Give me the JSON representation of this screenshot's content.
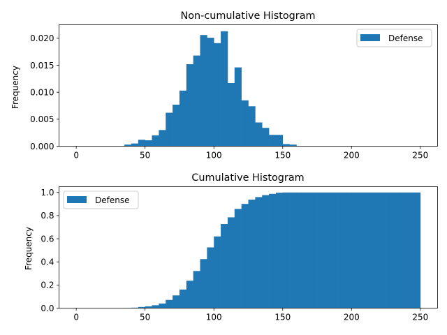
{
  "colors": {
    "bar": "#1f77b4",
    "axis": "#000000",
    "background": "#ffffff"
  },
  "chart_data": [
    {
      "type": "bar",
      "subtype": "histogram",
      "title": "Non-cumulative Histogram",
      "xlabel": "",
      "ylabel": "Frequency",
      "xlim": [
        -12.5,
        262.5
      ],
      "ylim": [
        0,
        0.0225
      ],
      "xticks": [
        "0",
        "50",
        "100",
        "150",
        "200",
        "250"
      ],
      "yticks": [
        "0.000",
        "0.005",
        "0.010",
        "0.015",
        "0.020"
      ],
      "ytick_values": [
        0,
        0.005,
        0.01,
        0.015,
        0.02
      ],
      "grid": false,
      "legend_position": "upper right",
      "bin_width": 5,
      "bin_start": 0,
      "series": [
        {
          "name": "Defense",
          "values": [
            0,
            0,
            0,
            0,
            0,
            0,
            0,
            0.0003,
            0.0005,
            0.0012,
            0.0011,
            0.002,
            0.003,
            0.0062,
            0.0077,
            0.0103,
            0.0152,
            0.0168,
            0.0206,
            0.0201,
            0.0191,
            0.0213,
            0.0117,
            0.0146,
            0.0085,
            0.0074,
            0.0044,
            0.0034,
            0.0021,
            0.0021,
            0.0004,
            0.0003,
            0,
            0,
            0,
            0,
            0,
            0,
            0,
            0,
            0,
            0,
            0,
            0,
            0,
            0,
            0,
            0,
            0,
            0
          ]
        }
      ]
    },
    {
      "type": "bar",
      "subtype": "cumulative-histogram",
      "title": "Cumulative Histogram",
      "xlabel": "",
      "ylabel": "Frequency",
      "xlim": [
        -12.5,
        262.5
      ],
      "ylim": [
        0,
        1.05
      ],
      "xticks": [
        "0",
        "50",
        "100",
        "150",
        "200",
        "250"
      ],
      "yticks": [
        "0.0",
        "0.2",
        "0.4",
        "0.6",
        "0.8",
        "1.0"
      ],
      "ytick_values": [
        0,
        0.2,
        0.4,
        0.6,
        0.8,
        1.0
      ],
      "grid": false,
      "legend_position": "upper left",
      "bin_width": 5,
      "bin_start": 0,
      "series": [
        {
          "name": "Defense",
          "values": [
            0,
            0,
            0,
            0,
            0,
            0,
            0,
            0.002,
            0.004,
            0.01,
            0.015,
            0.025,
            0.04,
            0.071,
            0.11,
            0.161,
            0.237,
            0.321,
            0.424,
            0.525,
            0.62,
            0.727,
            0.785,
            0.858,
            0.901,
            0.938,
            0.96,
            0.977,
            0.988,
            0.998,
            1.0,
            1.0,
            1.0,
            1.0,
            1.0,
            1.0,
            1.0,
            1.0,
            1.0,
            1.0,
            1.0,
            1.0,
            1.0,
            1.0,
            1.0,
            1.0,
            1.0,
            1.0,
            1.0,
            1.0
          ]
        }
      ]
    }
  ]
}
